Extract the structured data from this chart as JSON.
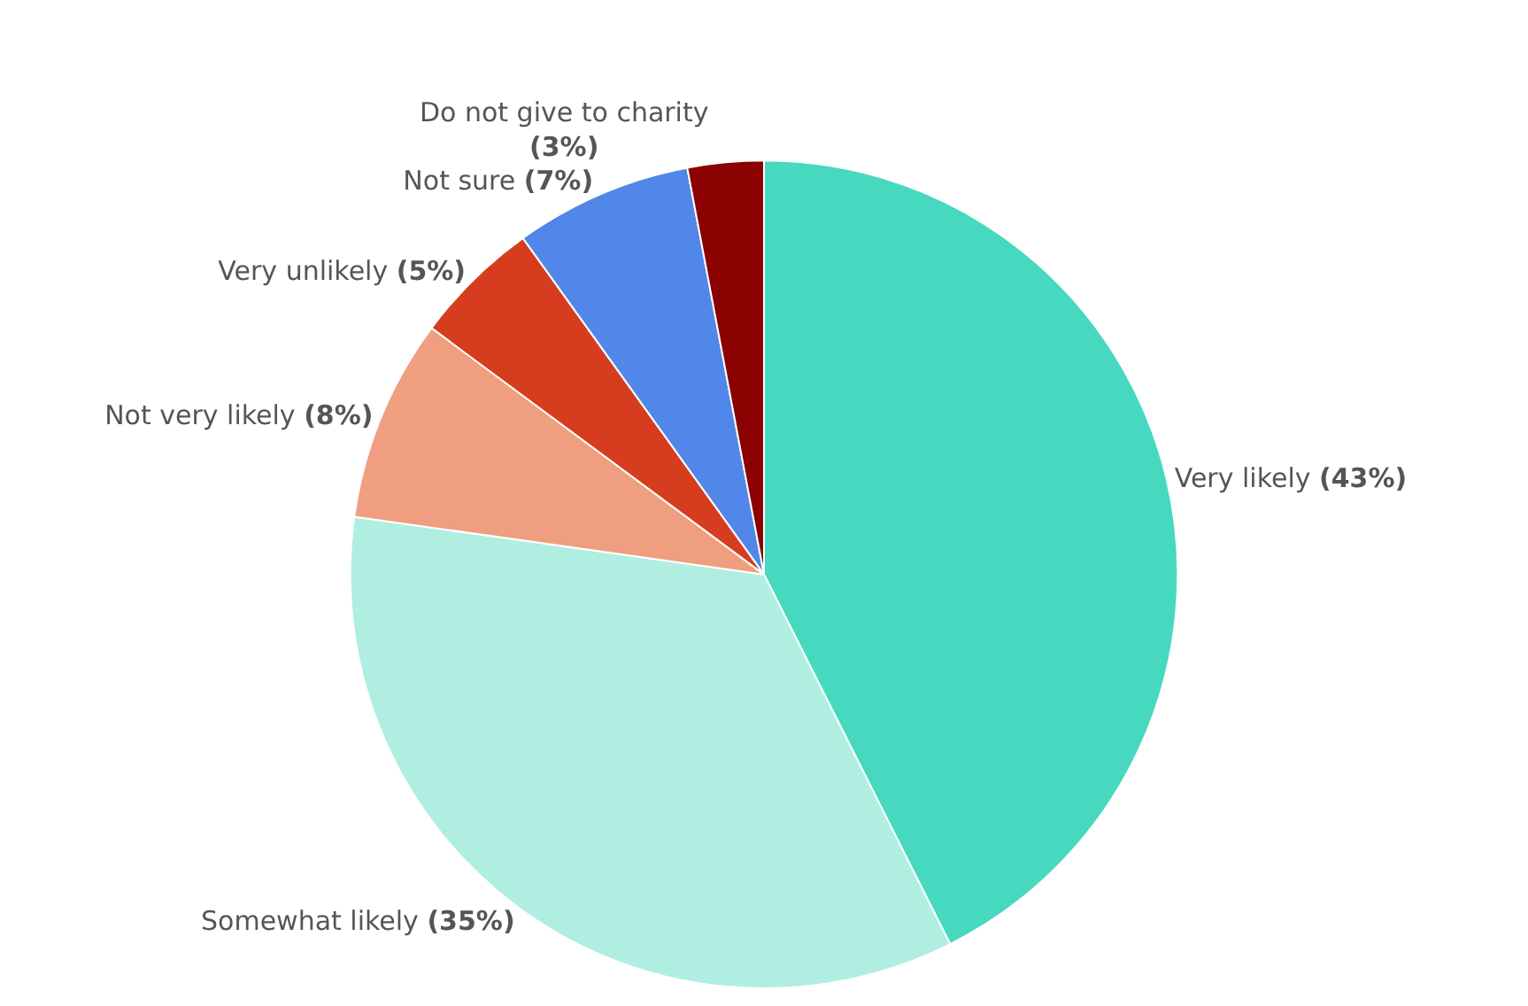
{
  "chart_data": {
    "type": "pie",
    "categories": [
      "Very likely",
      "Somewhat likely",
      "Not very likely",
      "Very unlikely",
      "Not sure",
      "Do not give to charity"
    ],
    "values": [
      43,
      35,
      8,
      5,
      7,
      3
    ],
    "value_labels": [
      "(43%)",
      "(35%)",
      "(8%)",
      "(5%)",
      "(7%)",
      "(3%)"
    ],
    "colors": [
      "#46d9bf",
      "#b0eee2",
      "#ef9e80",
      "#d63d1f",
      "#5087e8",
      "#8b0000"
    ],
    "legend": false
  }
}
